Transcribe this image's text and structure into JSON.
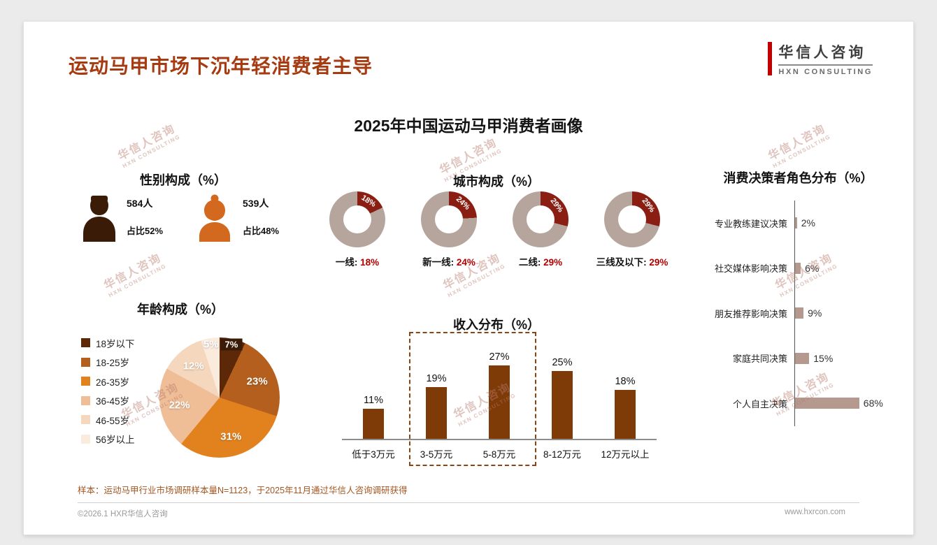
{
  "page": {
    "title": "运动马甲市场下沉年轻消费者主导",
    "logo_cn": "华信人咨询",
    "logo_en": "HXN CONSULTING",
    "main_title": "2025年中国运动马甲消费者画像",
    "sample_note": "样本：运动马甲行业市场调研样本量N=1123，于2025年11月通过华信人咨询调研获得",
    "footer_left": "©2026.1 HXR华信人咨询",
    "footer_right": "www.hxrcon.com",
    "watermark_line1": "华信人咨询",
    "watermark_line2": "HXN CONSULTING",
    "accent_color": "#A63A10"
  },
  "chart_data": [
    {
      "type": "pictogram",
      "title": "性别构成（%）",
      "items": [
        {
          "label": "男性",
          "count": "584人",
          "share": "占比52%",
          "color": "#3A1B07"
        },
        {
          "label": "女性",
          "count": "539人",
          "share": "占比48%",
          "color": "#D2691E"
        }
      ]
    },
    {
      "type": "pie",
      "subtype": "donut-set",
      "title": "城市构成（%）",
      "donuts": [
        {
          "label": "一线",
          "value": 18
        },
        {
          "label": "新一线",
          "value": 24
        },
        {
          "label": "二线",
          "value": 29
        },
        {
          "label": "三线及以下",
          "value": 29
        }
      ],
      "highlight_color": "#8A1E12",
      "rest_color": "#B5A59D"
    },
    {
      "type": "pie",
      "title": "年龄构成（%）",
      "segments": [
        {
          "label": "18岁以下",
          "value": 7,
          "color": "#5C2808"
        },
        {
          "label": "18-25岁",
          "value": 23,
          "color": "#B45F1E"
        },
        {
          "label": "26-35岁",
          "value": 31,
          "color": "#E2821F"
        },
        {
          "label": "36-45岁",
          "value": 22,
          "color": "#EFBE96"
        },
        {
          "label": "46-55岁",
          "value": 12,
          "color": "#F5D7BD"
        },
        {
          "label": "56岁以上",
          "value": 5,
          "color": "#FBEBDD"
        }
      ],
      "legend_position": "left"
    },
    {
      "type": "bar",
      "title": "收入分布（%）",
      "categories": [
        "低于3万元",
        "3-5万元",
        "5-8万元",
        "8-12万元",
        "12万元以上"
      ],
      "values": [
        11,
        19,
        27,
        25,
        18
      ],
      "ylim": [
        0,
        30
      ],
      "bar_color": "#7E3B08",
      "highlight_range": [
        "3-5万元",
        "5-8万元"
      ]
    },
    {
      "type": "bar",
      "orientation": "horizontal",
      "title": "消费决策者角色分布（%）",
      "categories": [
        "专业教练建议决策",
        "社交媒体影响决策",
        "朋友推荐影响决策",
        "家庭共同决策",
        "个人自主决策"
      ],
      "values": [
        2,
        6,
        9,
        15,
        68
      ],
      "xlim": [
        0,
        70
      ],
      "bar_color": "#B5998E"
    }
  ]
}
